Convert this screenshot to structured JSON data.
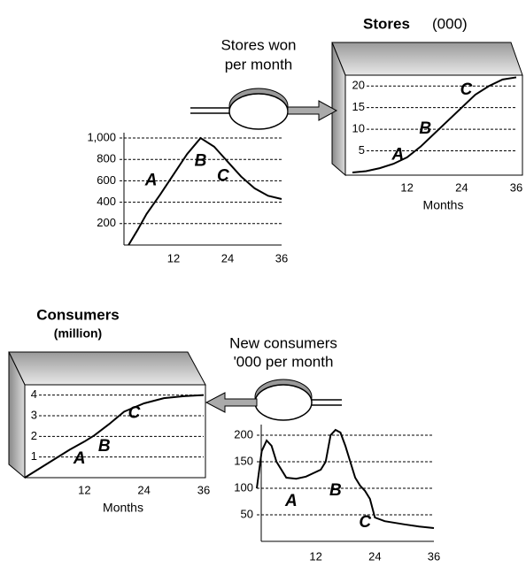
{
  "flows": [
    {
      "lines": [
        "Stores won",
        "per month"
      ]
    },
    {
      "lines": [
        "New consumers",
        "'000 per month"
      ]
    }
  ],
  "chart_data": [
    {
      "type": "line",
      "color": "#000000",
      "x": [
        2,
        4,
        6,
        9,
        12,
        15,
        18,
        21,
        24,
        27,
        30,
        33,
        36
      ],
      "values": [
        0,
        140,
        290,
        470,
        660,
        850,
        1000,
        920,
        780,
        640,
        530,
        460,
        430
      ],
      "xlim": [
        0,
        36
      ],
      "xticks": [
        12,
        24,
        36
      ],
      "ylim": [
        0,
        1050
      ],
      "yticks": [
        200,
        400,
        600,
        {
          "value": 800,
          "label": "800"
        },
        {
          "value": 1000,
          "label": "1,000"
        }
      ],
      "grid": true,
      "annotations": [
        {
          "text": "A",
          "x": 7,
          "y": 600
        },
        {
          "text": "B",
          "x": 18,
          "y": 780
        },
        {
          "text": "C",
          "x": 23,
          "y": 640
        }
      ]
    },
    {
      "type": "box-line",
      "title": "Stores",
      "subtitle": "(000)",
      "color": "#000000",
      "xlabel": "Months",
      "x": [
        0,
        3,
        6,
        9,
        12,
        15,
        18,
        21,
        24,
        27,
        30,
        33,
        36
      ],
      "values": [
        0,
        0.3,
        1,
        2,
        3.5,
        6,
        9,
        12,
        15,
        18,
        20,
        21.5,
        22
      ],
      "xlim": [
        0,
        36
      ],
      "xticks": [
        12,
        24,
        36
      ],
      "ylim": [
        0,
        22.5
      ],
      "yticks": [
        5,
        10,
        15,
        20
      ],
      "grid": true,
      "annotations": [
        {
          "text": "A",
          "x": 10,
          "y": 4
        },
        {
          "text": "B",
          "x": 16,
          "y": 10
        },
        {
          "text": "C",
          "x": 25,
          "y": 19
        }
      ]
    },
    {
      "type": "box-line",
      "title": "Consumers",
      "subtitle": "(million)",
      "color": "#000000",
      "xlabel": "Months",
      "x": [
        0,
        3,
        6,
        9,
        12,
        14,
        17,
        20,
        24,
        28,
        32,
        36
      ],
      "values": [
        0,
        0.45,
        0.9,
        1.35,
        1.75,
        2.05,
        2.6,
        3.2,
        3.6,
        3.85,
        3.95,
        4
      ],
      "xlim": [
        0,
        36
      ],
      "xticks": [
        12,
        24,
        36
      ],
      "ylim": [
        0,
        4.5
      ],
      "yticks": [
        1,
        2,
        3,
        4
      ],
      "grid": true,
      "annotations": [
        {
          "text": "A",
          "x": 11,
          "y": 0.9
        },
        {
          "text": "B",
          "x": 16,
          "y": 1.5
        },
        {
          "text": "C",
          "x": 22,
          "y": 3.1
        }
      ]
    },
    {
      "type": "line",
      "color": "#000000",
      "x": [
        0,
        1,
        2,
        3,
        4,
        6,
        8,
        10,
        13,
        14,
        15,
        16,
        17,
        18,
        20,
        21,
        22,
        23,
        24,
        26,
        30,
        33,
        36
      ],
      "values": [
        100,
        170,
        190,
        180,
        150,
        120,
        118,
        122,
        135,
        150,
        200,
        210,
        205,
        180,
        120,
        105,
        95,
        80,
        45,
        38,
        32,
        28,
        25
      ],
      "xlim": [
        0,
        36
      ],
      "xticks": [
        12,
        24,
        36
      ],
      "ylim": [
        0,
        220
      ],
      "yticks": [
        50,
        100,
        150,
        200
      ],
      "grid": true,
      "annotations": [
        {
          "text": "A",
          "x": 7,
          "y": 75
        },
        {
          "text": "B",
          "x": 16,
          "y": 95
        },
        {
          "text": "C",
          "x": 22,
          "y": 35
        }
      ]
    }
  ]
}
